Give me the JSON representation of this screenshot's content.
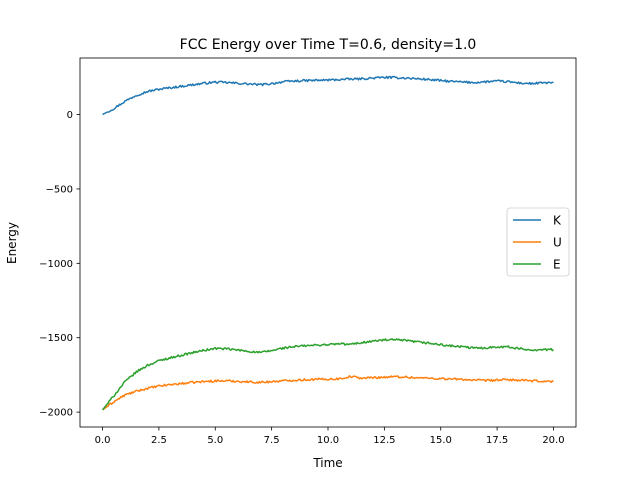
{
  "chart_data": {
    "type": "line",
    "title": "FCC Energy over Time T=0.6, density=1.0",
    "xlabel": "Time",
    "ylabel": "Energy",
    "xlim": [
      -1.0,
      21.0
    ],
    "ylim": [
      -2100,
      380
    ],
    "xticks": [
      0.0,
      2.5,
      5.0,
      7.5,
      10.0,
      12.5,
      15.0,
      17.5,
      20.0
    ],
    "xtick_labels": [
      "0.0",
      "2.5",
      "5.0",
      "7.5",
      "10.0",
      "12.5",
      "15.0",
      "17.5",
      "20.0"
    ],
    "yticks": [
      0,
      -500,
      -1000,
      -1500,
      -2000
    ],
    "ytick_labels": [
      "0",
      "−500",
      "−1000",
      "−1500",
      "−2000"
    ],
    "grid": false,
    "legend_position": "center-right",
    "series": [
      {
        "name": "K",
        "color": "#1f77b4",
        "points": [
          [
            0.0,
            0
          ],
          [
            0.5,
            40
          ],
          [
            1.0,
            90
          ],
          [
            1.5,
            130
          ],
          [
            2.0,
            155
          ],
          [
            2.5,
            170
          ],
          [
            3.0,
            180
          ],
          [
            3.5,
            190
          ],
          [
            4.0,
            200
          ],
          [
            4.5,
            210
          ],
          [
            5.0,
            218
          ],
          [
            5.5,
            215
          ],
          [
            6.0,
            210
          ],
          [
            6.5,
            205
          ],
          [
            7.0,
            200
          ],
          [
            7.5,
            208
          ],
          [
            8.0,
            220
          ],
          [
            8.5,
            225
          ],
          [
            9.0,
            228
          ],
          [
            9.5,
            230
          ],
          [
            10.0,
            232
          ],
          [
            10.5,
            235
          ],
          [
            11.0,
            238
          ],
          [
            11.5,
            240
          ],
          [
            12.0,
            245
          ],
          [
            12.5,
            250
          ],
          [
            13.0,
            248
          ],
          [
            13.5,
            245
          ],
          [
            14.0,
            240
          ],
          [
            14.5,
            235
          ],
          [
            15.0,
            228
          ],
          [
            15.5,
            222
          ],
          [
            16.0,
            218
          ],
          [
            16.5,
            215
          ],
          [
            17.0,
            220
          ],
          [
            17.5,
            225
          ],
          [
            18.0,
            220
          ],
          [
            18.5,
            212
          ],
          [
            19.0,
            208
          ],
          [
            19.5,
            212
          ],
          [
            20.0,
            215
          ]
        ]
      },
      {
        "name": "U",
        "color": "#ff7f0e",
        "points": [
          [
            0.0,
            -1985
          ],
          [
            0.5,
            -1930
          ],
          [
            1.0,
            -1885
          ],
          [
            1.5,
            -1860
          ],
          [
            2.0,
            -1840
          ],
          [
            2.5,
            -1825
          ],
          [
            3.0,
            -1815
          ],
          [
            3.5,
            -1808
          ],
          [
            4.0,
            -1800
          ],
          [
            4.5,
            -1795
          ],
          [
            5.0,
            -1790
          ],
          [
            5.5,
            -1790
          ],
          [
            6.0,
            -1793
          ],
          [
            6.5,
            -1797
          ],
          [
            7.0,
            -1800
          ],
          [
            7.5,
            -1795
          ],
          [
            8.0,
            -1790
          ],
          [
            8.5,
            -1785
          ],
          [
            9.0,
            -1782
          ],
          [
            9.5,
            -1780
          ],
          [
            10.0,
            -1778
          ],
          [
            10.5,
            -1776
          ],
          [
            11.0,
            -1760
          ],
          [
            11.5,
            -1772
          ],
          [
            12.0,
            -1768
          ],
          [
            12.5,
            -1765
          ],
          [
            13.0,
            -1762
          ],
          [
            13.5,
            -1765
          ],
          [
            14.0,
            -1770
          ],
          [
            14.5,
            -1772
          ],
          [
            15.0,
            -1775
          ],
          [
            15.5,
            -1778
          ],
          [
            16.0,
            -1780
          ],
          [
            16.5,
            -1785
          ],
          [
            17.0,
            -1788
          ],
          [
            17.5,
            -1785
          ],
          [
            18.0,
            -1782
          ],
          [
            18.5,
            -1786
          ],
          [
            19.0,
            -1790
          ],
          [
            19.5,
            -1792
          ],
          [
            20.0,
            -1795
          ]
        ]
      },
      {
        "name": "E",
        "color": "#2ca02c",
        "points": [
          [
            0.0,
            -1985
          ],
          [
            0.5,
            -1890
          ],
          [
            1.0,
            -1795
          ],
          [
            1.5,
            -1730
          ],
          [
            2.0,
            -1685
          ],
          [
            2.5,
            -1655
          ],
          [
            3.0,
            -1635
          ],
          [
            3.5,
            -1618
          ],
          [
            4.0,
            -1600
          ],
          [
            4.5,
            -1585
          ],
          [
            5.0,
            -1572
          ],
          [
            5.5,
            -1575
          ],
          [
            6.0,
            -1583
          ],
          [
            6.5,
            -1592
          ],
          [
            7.0,
            -1600
          ],
          [
            7.5,
            -1587
          ],
          [
            8.0,
            -1570
          ],
          [
            8.5,
            -1560
          ],
          [
            9.0,
            -1554
          ],
          [
            9.5,
            -1550
          ],
          [
            10.0,
            -1546
          ],
          [
            10.5,
            -1541
          ],
          [
            11.0,
            -1545
          ],
          [
            11.5,
            -1532
          ],
          [
            12.0,
            -1523
          ],
          [
            12.5,
            -1515
          ],
          [
            13.0,
            -1514
          ],
          [
            13.5,
            -1520
          ],
          [
            14.0,
            -1530
          ],
          [
            14.5,
            -1537
          ],
          [
            15.0,
            -1547
          ],
          [
            15.5,
            -1556
          ],
          [
            16.0,
            -1562
          ],
          [
            16.5,
            -1570
          ],
          [
            17.0,
            -1568
          ],
          [
            17.5,
            -1560
          ],
          [
            18.0,
            -1562
          ],
          [
            18.5,
            -1574
          ],
          [
            19.0,
            -1582
          ],
          [
            19.5,
            -1580
          ],
          [
            20.0,
            -1580
          ]
        ]
      }
    ]
  }
}
